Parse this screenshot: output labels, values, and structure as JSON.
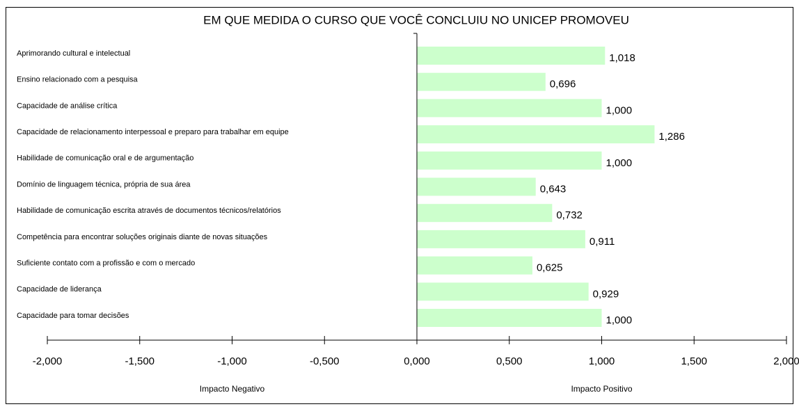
{
  "chart_data": {
    "type": "bar",
    "orientation": "horizontal",
    "title": "EM QUE MEDIDA O CURSO QUE VOCÊ CONCLUIU NO UNICEP PROMOVEU",
    "categories": [
      "Aprimorando cultural e intelectual",
      "Ensino relacionado com a pesquisa",
      "Capacidade de análise crítica",
      "Capacidade de relacionamento interpessoal e preparo para trabalhar em equipe",
      "Habilidade de comunicação oral e de argumentação",
      "Domínio de linguagem técnica, própria de sua área",
      "Habilidade de comunicação escrita através de documentos técnicos/relatórios",
      "Competência para encontrar soluções originais diante de novas situações",
      "Suficiente contato com a profissão e com o mercado",
      "Capacidade de liderança",
      "Capacidade para tomar decisões"
    ],
    "values": [
      1.018,
      0.696,
      1.0,
      1.286,
      1.0,
      0.643,
      0.732,
      0.911,
      0.625,
      0.929,
      1.0
    ],
    "value_labels": [
      "1,018",
      "0,696",
      "1,000",
      "1,286",
      "1,000",
      "0,643",
      "0,732",
      "0,911",
      "0,625",
      "0,929",
      "1,000"
    ],
    "color": "#ccffcc",
    "xlim": [
      -2,
      2
    ],
    "xticks": [
      {
        "value": -2,
        "label": "-2,000"
      },
      {
        "value": -1.5,
        "label": "-1,500"
      },
      {
        "value": -1,
        "label": "-1,000"
      },
      {
        "value": -0.5,
        "label": "-0,500"
      },
      {
        "value": 0,
        "label": "0,000"
      },
      {
        "value": 0.5,
        "label": "0,500"
      },
      {
        "value": 1,
        "label": "1,000"
      },
      {
        "value": 1.5,
        "label": "1,500"
      },
      {
        "value": 2,
        "label": "2,000"
      }
    ],
    "annotations": [
      "Impacto Negativo",
      "Impacto Positivo"
    ]
  }
}
